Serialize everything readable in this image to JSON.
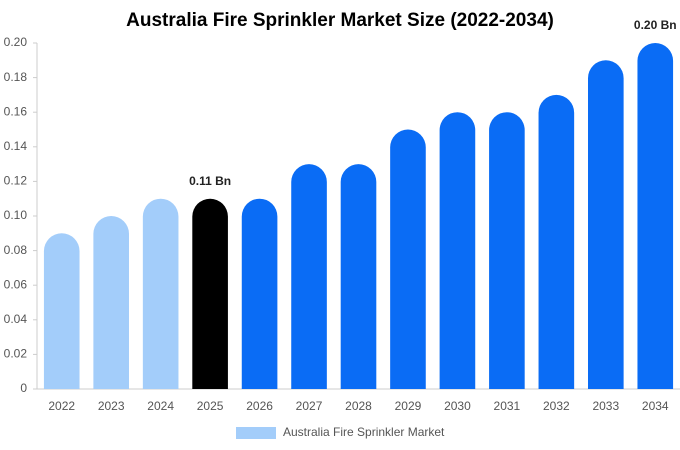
{
  "chart_data": {
    "type": "bar",
    "title": "Australia Fire Sprinkler Market Size (2022-2034)",
    "categories": [
      "2022",
      "2023",
      "2024",
      "2025",
      "2026",
      "2027",
      "2028",
      "2029",
      "2030",
      "2031",
      "2032",
      "2033",
      "2034"
    ],
    "series": [
      {
        "name": "Australia Fire Sprinkler Market",
        "color": "#a3cdfa",
        "values": [
          0.09,
          0.1,
          0.11,
          0.11,
          0.11,
          0.13,
          0.13,
          0.15,
          0.16,
          0.16,
          0.17,
          0.19,
          0.2
        ],
        "value_labels": [
          null,
          null,
          null,
          "0.11 Bn",
          null,
          null,
          null,
          null,
          null,
          null,
          null,
          null,
          "0.20 Bn"
        ],
        "colors": [
          "#a3cdfa",
          "#a3cdfa",
          "#a3cdfa",
          "#000000",
          "#0a6cf5",
          "#0a6cf5",
          "#0a6cf5",
          "#0a6cf5",
          "#0a6cf5",
          "#0a6cf5",
          "#0a6cf5",
          "#0a6cf5",
          "#0a6cf5"
        ]
      }
    ],
    "ylim": [
      0,
      0.2
    ],
    "yticks": [
      0,
      0.02,
      0.04,
      0.06,
      0.08,
      {
        "value": 0.1,
        "label": "0.10"
      },
      0.12,
      0.14,
      0.16,
      0.18,
      {
        "value": 0.2,
        "label": "0.20"
      }
    ],
    "grid": false
  }
}
